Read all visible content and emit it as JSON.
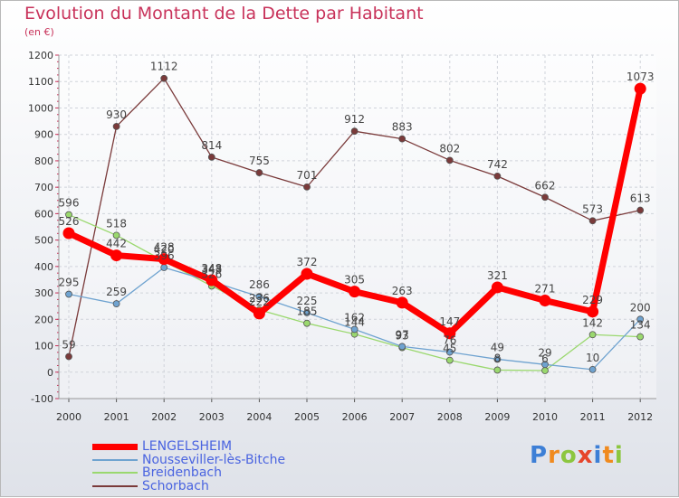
{
  "title": "Evolution du Montant de la Dette par Habitant",
  "unit_label": "(en €)",
  "logo": {
    "text": "Proxiti",
    "colors": [
      "#3d7fd6",
      "#f08a1e",
      "#8cc63f",
      "#e6452b",
      "#3d7fd6",
      "#f08a1e",
      "#8cc63f"
    ]
  },
  "chart_data": {
    "type": "line",
    "x": [
      "2000",
      "2001",
      "2002",
      "2003",
      "2004",
      "2005",
      "2006",
      "2007",
      "2008",
      "2009",
      "2010",
      "2011",
      "2012"
    ],
    "ylim": [
      -100,
      1200
    ],
    "yticks": [
      -100,
      0,
      100,
      200,
      300,
      400,
      500,
      600,
      700,
      800,
      900,
      1000,
      1100,
      1200
    ],
    "grid": true,
    "legend_position": "bottom-left",
    "series": [
      {
        "name": "LENGELSHEIM",
        "color": "#ff0000",
        "values": [
          526,
          442,
          428,
          348,
          222,
          372,
          305,
          263,
          147,
          321,
          271,
          229,
          1073
        ],
        "labels": true
      },
      {
        "name": "Nousseviller-lès-Bitche",
        "color": "#6fa3d0",
        "values": [
          295,
          259,
          396,
          343,
          286,
          225,
          162,
          97,
          76,
          49,
          29,
          10,
          200
        ],
        "labels": true
      },
      {
        "name": "Breidenbach",
        "color": "#9ad86e",
        "values": [
          596,
          518,
          420,
          326,
          236,
          185,
          144,
          93,
          45,
          8,
          6,
          142,
          134
        ],
        "labels": true
      },
      {
        "name": "Schorbach",
        "color": "#7a3a3a",
        "values": [
          59,
          930,
          1112,
          814,
          755,
          701,
          912,
          883,
          802,
          742,
          662,
          573,
          613
        ],
        "labels": true
      }
    ]
  }
}
